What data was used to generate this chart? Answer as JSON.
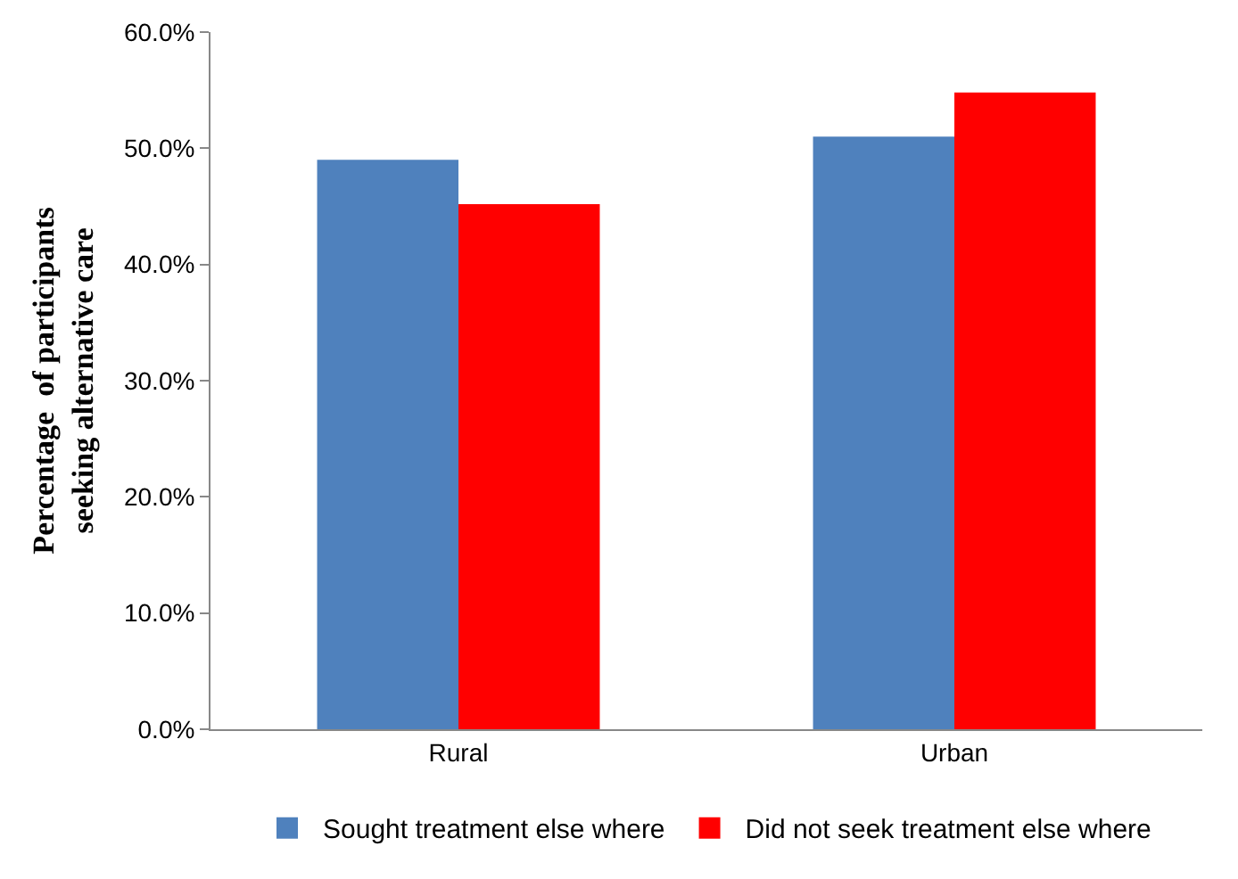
{
  "chart_data": {
    "type": "bar",
    "categories": [
      "Rural",
      "Urban"
    ],
    "series": [
      {
        "name": "Sought treatment else where",
        "color": "#4f81bd",
        "values": [
          49.0,
          51.0
        ]
      },
      {
        "name": "Did not seek treatment else where",
        "color": "#ff0000",
        "values": [
          45.2,
          54.8
        ]
      }
    ],
    "ylabel": "Percentage  of participants seeking alternative care",
    "ylim": [
      0,
      60
    ],
    "yticks": [
      {
        "value": 0,
        "label": "0.0%"
      },
      {
        "value": 10,
        "label": "10.0%"
      },
      {
        "value": 20,
        "label": "20.0%"
      },
      {
        "value": 30,
        "label": "30.0%"
      },
      {
        "value": 40,
        "label": "40.0%"
      },
      {
        "value": 50,
        "label": "50.0%"
      },
      {
        "value": 60,
        "label": "60.0%"
      }
    ],
    "grid": false,
    "legend": "bottom"
  }
}
